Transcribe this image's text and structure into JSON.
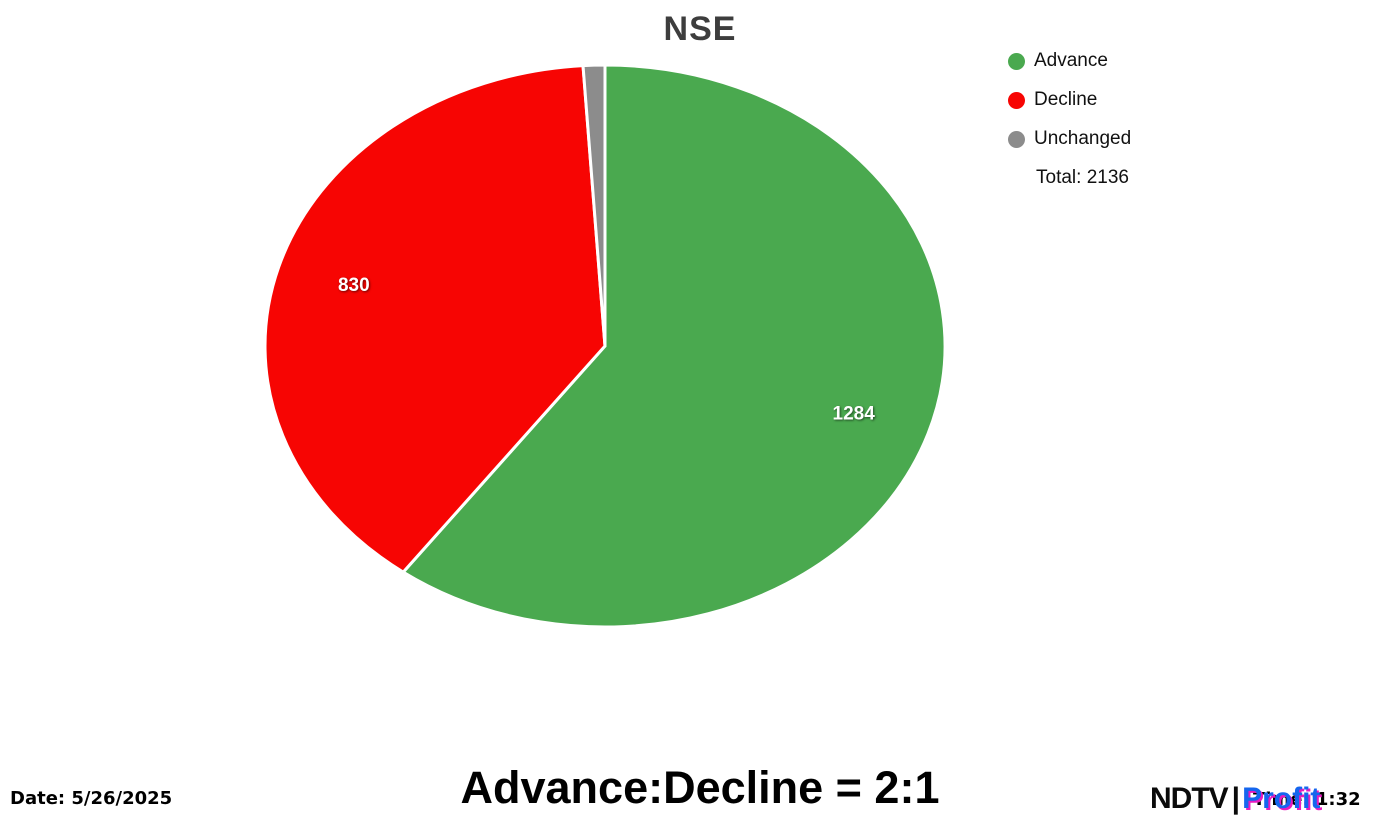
{
  "chart_data": {
    "type": "pie",
    "title": "NSE",
    "direction": "clockwise",
    "start_angle_deg": 0,
    "total": 2136,
    "slices": [
      {
        "label": "Advance",
        "value": 1284,
        "color": "#4aa94f",
        "data_label": "1284"
      },
      {
        "label": "Decline",
        "value": 830,
        "color": "#f70503",
        "data_label": "830"
      },
      {
        "label": "Unchanged",
        "value": 22,
        "color": "#8c8c8c",
        "data_label": ""
      }
    ],
    "legend_position": "top-right",
    "legend_total_label": "Total: 2136"
  },
  "footer": {
    "date": "Date: 5/26/2025",
    "ratio": "Advance:Decline = 2:1",
    "time": "Time: 1:32"
  },
  "brand": {
    "ndtv": "NDTV",
    "separator": "|",
    "profit": "Profit"
  }
}
